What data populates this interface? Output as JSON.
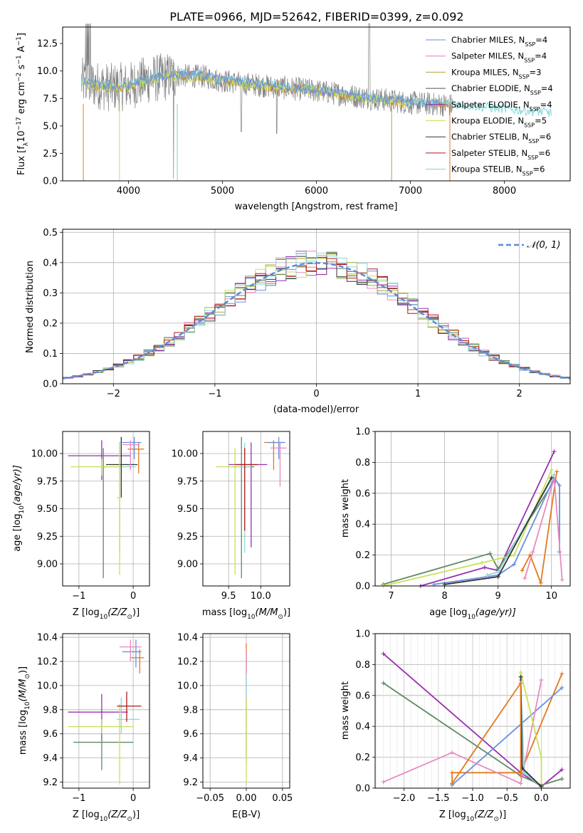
{
  "figure_title": "PLATE=0966, MJD=52642, FIBERID=0399, z=0.092",
  "colors": {
    "chab_miles": "#6b8bdc",
    "salp_miles": "#e27dbd",
    "krou_miles": "#b8a13a",
    "chab_elodie": "#555555",
    "salp_elodie": "#7b2fa0",
    "krou_elodie": "#c8e05a",
    "chab_stelib": "#333333",
    "salp_stelib": "#b01818",
    "krou_stelib": "#7ad3d8",
    "orange": "#e07a1f",
    "purple": "#9a2fb0",
    "green": "#5e8a62",
    "lime": "#c8e05a",
    "pink": "#e88ac0",
    "blue": "#6a8fe0",
    "teal": "#8fd6d6"
  },
  "chart_data": [
    {
      "id": "spectrum",
      "type": "line",
      "xlabel": "wavelength [Angstrom, rest frame]",
      "ylabel": "Flux [f",
      "ylabel_sub": "λ",
      "ylabel_rest": "10",
      "ylabel_exp": "−17",
      "ylabel_tail": " erg cm",
      "ylabel_exp2": "−2",
      "ylabel_tail2": " s",
      "ylabel_exp3": "−1",
      "ylabel_tail3": " A",
      "ylabel_exp4": "−1",
      "ylabel_end": "]",
      "xlim": [
        3300,
        8700
      ],
      "ylim": [
        0,
        14
      ],
      "xticks": [
        "4000",
        "5000",
        "6000",
        "7000",
        "8000"
      ],
      "yticks": [
        "0.0",
        "2.5",
        "5.0",
        "7.5",
        "10.0",
        "12.5"
      ],
      "legend": [
        {
          "label": "Chabrier MILES, N",
          "sub": "SSP",
          "tail": "=4"
        },
        {
          "label": "Salpeter MILES, N",
          "sub": "SSP",
          "tail": "=4"
        },
        {
          "label": "Kroupa MILES, N",
          "sub": "SSP",
          "tail": "=3"
        },
        {
          "label": "Chabrier ELODIE, N",
          "sub": "SSP",
          "tail": "=4"
        },
        {
          "label": "Salpeter ELODIE, N",
          "sub": "SSP",
          "tail": "=4"
        },
        {
          "label": "Kroupa ELODIE, N",
          "sub": "SSP",
          "tail": "=5"
        },
        {
          "label": "Chabrier STELIB, N",
          "sub": "SSP",
          "tail": "=6"
        },
        {
          "label": "Salpeter STELIB, N",
          "sub": "SSP",
          "tail": "=6"
        },
        {
          "label": "Kroupa STELIB, N",
          "sub": "SSP",
          "tail": "=6"
        }
      ],
      "model_trend": [
        [
          3500,
          9.0
        ],
        [
          3800,
          8.5
        ],
        [
          4000,
          8.6
        ],
        [
          4200,
          9.2
        ],
        [
          4500,
          9.6
        ],
        [
          4800,
          9.5
        ],
        [
          5000,
          9.1
        ],
        [
          5500,
          8.6
        ],
        [
          6000,
          8.2
        ],
        [
          6500,
          7.6
        ],
        [
          7000,
          7.1
        ],
        [
          7400,
          6.9
        ],
        [
          8000,
          6.4
        ],
        [
          8600,
          6.0
        ]
      ]
    },
    {
      "id": "residuals",
      "type": "histogram",
      "xlabel": "(data-model)/error",
      "ylabel": "Normed distribution",
      "xlim": [
        -2.5,
        2.5
      ],
      "ylim": [
        0,
        0.51
      ],
      "xticks": [
        "−2",
        "−1",
        "0",
        "1",
        "2"
      ],
      "yticks": [
        "0.0",
        "0.1",
        "0.2",
        "0.3",
        "0.4",
        "0.5"
      ],
      "legend": "𝒩(0, 1)",
      "bin_width": 0.1
    },
    {
      "id": "age_vs_Z",
      "type": "scatter",
      "xlabel": "Z [log",
      "xlabel_sub": "10",
      "xlabel_tail": "(Z/Z",
      "xlabel_sub2": "⊙",
      "xlabel_end": ")]",
      "ylabel": "age  [log",
      "ylabel_sub": "10",
      "ylabel_tail": "(age/yr)]",
      "xlim": [
        -1.3,
        0.3
      ],
      "ylim": [
        8.8,
        10.2
      ],
      "xticks": [
        "−1",
        "0"
      ],
      "yticks": [
        "9.00",
        "9.25",
        "9.50",
        "9.75",
        "10.00"
      ]
    },
    {
      "id": "age_vs_mass",
      "type": "scatter",
      "xlabel": "mass [log",
      "xlabel_sub": "10",
      "xlabel_tail": "(M/M",
      "xlabel_sub2": "⊙",
      "xlabel_end": ")]",
      "xlim": [
        9.1,
        10.45
      ],
      "ylim": [
        8.8,
        10.2
      ],
      "xticks": [
        "9.5",
        "10.0"
      ],
      "yticks": [
        "9.00",
        "9.25",
        "9.50",
        "9.75",
        "10.00"
      ]
    },
    {
      "id": "weight_vs_age",
      "type": "line",
      "xlabel": "age  [log",
      "xlabel_sub": "10",
      "xlabel_tail": "(age/yr)]",
      "ylabel": "mass weight",
      "xlim": [
        6.7,
        10.35
      ],
      "ylim": [
        0,
        1.0
      ],
      "xticks": [
        "7",
        "8",
        "9",
        "10"
      ],
      "yticks": [
        "0.0",
        "0.2",
        "0.4",
        "0.6",
        "0.8",
        "1.0"
      ]
    },
    {
      "id": "mass_vs_Z",
      "type": "scatter",
      "xlabel": "Z [log",
      "xlabel_sub": "10",
      "xlabel_tail": "(Z/Z",
      "xlabel_sub2": "⊙",
      "xlabel_end": ")]",
      "ylabel": "mass [log",
      "ylabel_sub": "10",
      "ylabel_tail": "(M/M",
      "ylabel_sub2": "⊙",
      "ylabel_end": ")]",
      "xlim": [
        -1.3,
        0.3
      ],
      "ylim": [
        9.15,
        10.43
      ],
      "xticks": [
        "−1",
        "0"
      ],
      "yticks": [
        "9.2",
        "9.4",
        "9.6",
        "9.8",
        "10.0",
        "10.2",
        "10.4"
      ]
    },
    {
      "id": "mass_vs_EBV",
      "type": "scatter",
      "xlabel": "E(B-V)",
      "xlim": [
        -0.06,
        0.06
      ],
      "ylim": [
        9.15,
        10.43
      ],
      "xticks": [
        "−0.05",
        "0.00",
        "0.05"
      ],
      "yticks": [
        "9.2",
        "9.4",
        "9.6",
        "9.8",
        "10.0",
        "10.2",
        "10.4"
      ]
    },
    {
      "id": "weight_vs_Z",
      "type": "line",
      "xlabel": "Z [log",
      "xlabel_sub": "10",
      "xlabel_tail": "(Z/Z",
      "xlabel_sub2": "⊙",
      "xlabel_end": ")]",
      "ylabel": "mass weight",
      "xlim": [
        -2.42,
        0.42
      ],
      "ylim": [
        0,
        1.0
      ],
      "xticks": [
        "−2.0",
        "−1.5",
        "−1.0",
        "−0.5",
        "0.0"
      ],
      "yticks": [
        "0.0",
        "0.2",
        "0.4",
        "0.6",
        "0.8",
        "1.0"
      ]
    }
  ],
  "points_age_Z": [
    {
      "z": -0.58,
      "zlo": -1.2,
      "zhi": -0.05,
      "a": 9.98,
      "alo": 9.76,
      "ahi": 10.12,
      "color": "purple"
    },
    {
      "z": -0.25,
      "zlo": -0.55,
      "zhi": 0.05,
      "a": 9.88,
      "alo": 9.1,
      "ahi": 10.1,
      "color": "teal"
    },
    {
      "z": -0.55,
      "zlo": -0.6,
      "zhi": -0.5,
      "a": 9.88,
      "alo": 8.87,
      "ahi": 10.05,
      "color": "green"
    },
    {
      "z": -0.58,
      "zlo": -1.15,
      "zhi": -0.2,
      "a": 9.88,
      "alo": 9.8,
      "ahi": 9.95,
      "color": "lime"
    },
    {
      "z": -0.22,
      "zlo": -0.5,
      "zhi": 0.08,
      "a": 9.9,
      "alo": 9.6,
      "ahi": 10.15,
      "color": "chab_stelib"
    },
    {
      "z": 0.1,
      "zlo": -0.1,
      "zhi": 0.2,
      "a": 10.04,
      "alo": 9.82,
      "ahi": 10.1,
      "color": "orange"
    },
    {
      "z": 0.02,
      "zlo": -0.25,
      "zhi": 0.15,
      "a": 10.1,
      "alo": 9.95,
      "ahi": 10.15,
      "color": "blue"
    },
    {
      "z": -0.05,
      "zlo": -0.2,
      "zhi": 0.12,
      "a": 10.08,
      "alo": 9.85,
      "ahi": 10.12,
      "color": "pink"
    },
    {
      "z": -0.25,
      "zlo": -0.3,
      "zhi": -0.2,
      "a": 9.6,
      "alo": 8.9,
      "ahi": 10.1,
      "color": "lime"
    }
  ],
  "points_age_mass": [
    {
      "m": 9.85,
      "mlo": 9.5,
      "mhi": 10.1,
      "a": 9.9,
      "alo": 9.15,
      "ahi": 10.1,
      "color": "purple"
    },
    {
      "m": 9.7,
      "mlo": 9.55,
      "mhi": 9.9,
      "a": 9.88,
      "alo": 8.87,
      "ahi": 10.15,
      "color": "green"
    },
    {
      "m": 9.6,
      "mlo": 9.3,
      "mhi": 9.75,
      "a": 9.88,
      "alo": 8.9,
      "ahi": 10.05,
      "color": "lime"
    },
    {
      "m": 9.75,
      "mlo": 9.65,
      "mhi": 9.85,
      "a": 9.88,
      "alo": 9.1,
      "ahi": 10.1,
      "color": "teal"
    },
    {
      "m": 9.75,
      "mlo": 9.6,
      "mhi": 9.95,
      "a": 9.9,
      "alo": 9.3,
      "ahi": 10.05,
      "color": "salp_stelib"
    },
    {
      "m": 10.2,
      "mlo": 10.05,
      "mhi": 10.35,
      "a": 10.1,
      "alo": 9.85,
      "ahi": 10.12,
      "color": "orange"
    },
    {
      "m": 10.28,
      "mlo": 10.1,
      "mhi": 10.38,
      "a": 10.1,
      "alo": 9.95,
      "ahi": 10.15,
      "color": "blue"
    },
    {
      "m": 10.3,
      "mlo": 10.15,
      "mhi": 10.4,
      "a": 10.05,
      "alo": 9.7,
      "ahi": 10.1,
      "color": "pink"
    }
  ],
  "points_mass_Z": [
    {
      "z": -0.58,
      "zlo": -1.2,
      "zhi": -0.1,
      "m": 9.78,
      "mlo": 9.55,
      "mhi": 9.93,
      "color": "purple"
    },
    {
      "z": -0.58,
      "zlo": -1.1,
      "zhi": 0.0,
      "m": 9.53,
      "mlo": 9.3,
      "mhi": 9.72,
      "color": "green"
    },
    {
      "z": -0.58,
      "zlo": -1.2,
      "zhi": 0.0,
      "m": 9.66,
      "mlo": 9.6,
      "mhi": 9.72,
      "color": "lime"
    },
    {
      "z": -0.25,
      "zlo": -0.3,
      "zhi": -0.2,
      "m": 9.4,
      "mlo": 9.18,
      "mhi": 9.85,
      "color": "lime"
    },
    {
      "z": -0.22,
      "zlo": -0.3,
      "zhi": 0.12,
      "m": 9.72,
      "mlo": 9.6,
      "mhi": 9.9,
      "color": "teal"
    },
    {
      "z": -0.12,
      "zlo": -0.3,
      "zhi": 0.15,
      "m": 9.83,
      "mlo": 9.7,
      "mhi": 9.95,
      "color": "salp_stelib"
    },
    {
      "z": 0.12,
      "zlo": -0.05,
      "zhi": 0.2,
      "m": 10.23,
      "mlo": 10.1,
      "mhi": 10.3,
      "color": "orange"
    },
    {
      "z": 0.05,
      "zlo": -0.2,
      "zhi": 0.15,
      "m": 10.28,
      "mlo": 10.15,
      "mhi": 10.38,
      "color": "blue"
    },
    {
      "z": -0.05,
      "zlo": -0.25,
      "zhi": 0.15,
      "m": 10.32,
      "mlo": 10.2,
      "mhi": 10.38,
      "color": "pink"
    }
  ],
  "points_mass_EBV": [
    {
      "e": 0.0,
      "m": 10.2,
      "mlo": 10.1,
      "mhi": 10.35,
      "color": "orange"
    },
    {
      "e": 0.0,
      "m": 9.95,
      "mlo": 9.4,
      "mhi": 10.3,
      "color": "pink"
    },
    {
      "e": 0.0,
      "m": 9.75,
      "mlo": 9.35,
      "mhi": 10.1,
      "color": "teal"
    },
    {
      "e": 0.0,
      "m": 9.6,
      "mlo": 9.18,
      "mhi": 9.9,
      "color": "lime"
    }
  ],
  "weight_age_series": [
    {
      "color": "purple",
      "pts": [
        [
          7.55,
          0.0
        ],
        [
          8.75,
          0.12
        ],
        [
          9.0,
          0.1
        ],
        [
          10.05,
          0.87
        ]
      ]
    },
    {
      "color": "green",
      "pts": [
        [
          6.85,
          0.01
        ],
        [
          8.85,
          0.21
        ],
        [
          9.0,
          0.11
        ],
        [
          10.05,
          0.68
        ]
      ]
    },
    {
      "color": "lime",
      "pts": [
        [
          6.85,
          0.0
        ],
        [
          8.7,
          0.15
        ],
        [
          9.3,
          0.2
        ],
        [
          10.0,
          0.75
        ]
      ]
    },
    {
      "color": "blue",
      "pts": [
        [
          7.8,
          0.01
        ],
        [
          9.0,
          0.07
        ],
        [
          9.3,
          0.14
        ],
        [
          10.05,
          0.7
        ],
        [
          10.15,
          0.65
        ],
        [
          10.15,
          0.22
        ]
      ]
    },
    {
      "color": "orange",
      "pts": [
        [
          9.45,
          0.1
        ],
        [
          9.6,
          0.2
        ],
        [
          9.8,
          0.02
        ],
        [
          10.1,
          0.74
        ]
      ]
    },
    {
      "color": "pink",
      "pts": [
        [
          9.5,
          0.05
        ],
        [
          9.65,
          0.22
        ],
        [
          10.05,
          0.7
        ],
        [
          10.2,
          0.04
        ]
      ]
    },
    {
      "color": "teal",
      "pts": [
        [
          8.8,
          0.07
        ],
        [
          9.0,
          0.09
        ],
        [
          10.05,
          0.72
        ]
      ]
    },
    {
      "color": "chab_stelib",
      "pts": [
        [
          8.0,
          0.01
        ],
        [
          9.0,
          0.06
        ],
        [
          10.0,
          0.7
        ]
      ]
    }
  ],
  "weight_Z_series": [
    {
      "color": "purple",
      "pts": [
        [
          -2.3,
          0.87
        ],
        [
          -0.3,
          0.1
        ],
        [
          0.0,
          0.01
        ],
        [
          0.3,
          0.12
        ]
      ]
    },
    {
      "color": "green",
      "pts": [
        [
          -2.3,
          0.68
        ],
        [
          -0.3,
          0.08
        ],
        [
          0.0,
          0.02
        ],
        [
          0.3,
          0.06
        ]
      ]
    },
    {
      "color": "orange",
      "pts": [
        [
          -1.3,
          0.03
        ],
        [
          -1.3,
          0.1
        ],
        [
          -0.3,
          0.1
        ],
        [
          0.3,
          0.74
        ]
      ]
    },
    {
      "color": "blue",
      "pts": [
        [
          -1.3,
          0.02
        ],
        [
          0.3,
          0.65
        ]
      ]
    },
    {
      "color": "pink",
      "pts": [
        [
          -2.3,
          0.04
        ],
        [
          -1.3,
          0.23
        ],
        [
          -0.3,
          0.03
        ],
        [
          0.0,
          0.7
        ]
      ]
    },
    {
      "color": "lime",
      "pts": [
        [
          -0.3,
          0.75
        ],
        [
          0.0,
          0.2
        ],
        [
          0.0,
          0.01
        ]
      ]
    },
    {
      "color": "teal",
      "pts": [
        [
          -0.3,
          0.7
        ],
        [
          -0.25,
          0.1
        ],
        [
          0.0,
          0.01
        ]
      ]
    },
    {
      "color": "chab_stelib",
      "pts": [
        [
          -0.3,
          0.72
        ],
        [
          -0.28,
          0.13
        ],
        [
          0.0,
          0.01
        ]
      ]
    },
    {
      "color": "orange",
      "pts": [
        [
          -1.3,
          0.03
        ],
        [
          -0.3,
          0.68
        ],
        [
          -0.3,
          0.08
        ]
      ]
    }
  ]
}
